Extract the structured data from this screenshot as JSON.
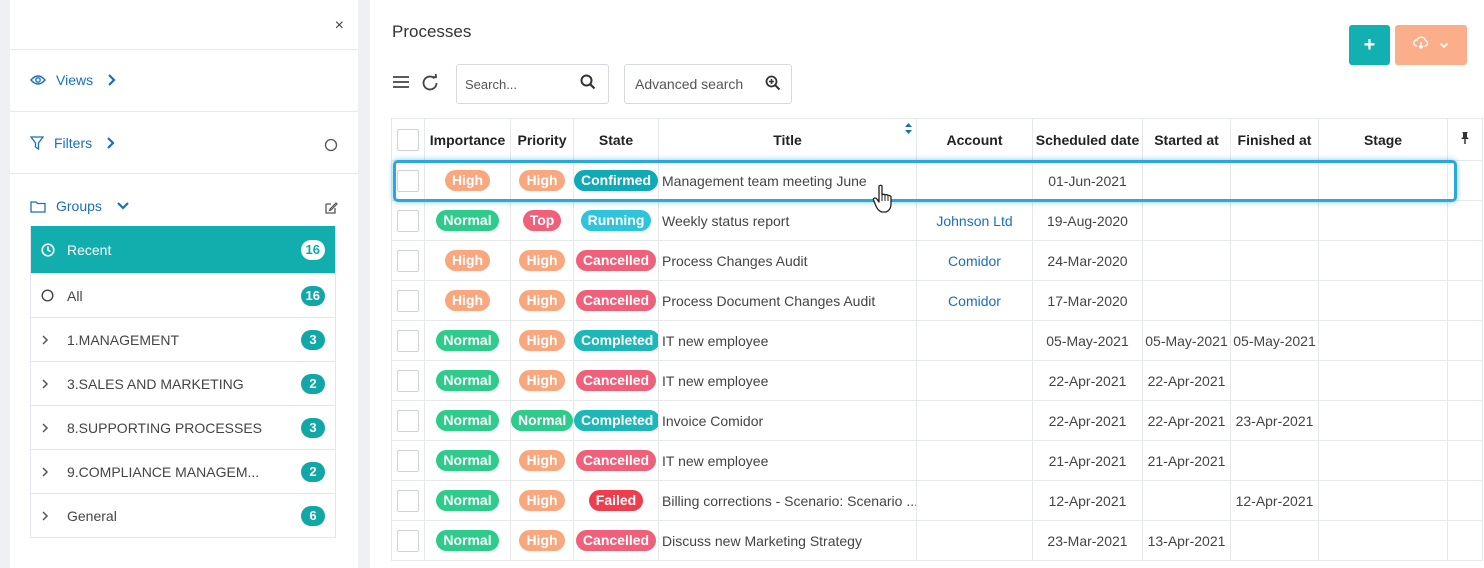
{
  "sidebar": {
    "close_label": "×",
    "views_label": "Views",
    "filters_label": "Filters",
    "groups_label": "Groups",
    "groups": [
      {
        "label": "Recent",
        "count": "16",
        "icon": "clock-icon",
        "active": true
      },
      {
        "label": "All",
        "count": "16",
        "icon": "circle-icon"
      },
      {
        "label": "1.MANAGEMENT",
        "count": "3",
        "icon": "chevron-right-icon"
      },
      {
        "label": "3.SALES AND MARKETING",
        "count": "2",
        "icon": "chevron-right-icon"
      },
      {
        "label": "8.SUPPORTING PROCESSES",
        "count": "3",
        "icon": "chevron-right-icon"
      },
      {
        "label": "9.COMPLIANCE MANAGEM...",
        "count": "2",
        "icon": "chevron-right-icon"
      },
      {
        "label": "General",
        "count": "6",
        "icon": "chevron-right-icon"
      }
    ]
  },
  "header": {
    "title": "Processes",
    "add_label": "+",
    "search_placeholder": "Search...",
    "advanced_search_label": "Advanced search"
  },
  "colors": {
    "teal": "#12aeae",
    "orange": "#fbae8a",
    "green": "#2ecb8c",
    "red": "#f0607a",
    "cyan": "#2ec4dc",
    "highlight": "#2aa6e0"
  },
  "table": {
    "columns": [
      "",
      "Importance",
      "Priority",
      "State",
      "Title",
      "Account",
      "Scheduled date",
      "Started at",
      "Finished at",
      "Stage",
      ""
    ],
    "rows": [
      {
        "importance": "High",
        "priority": "High",
        "state": "Confirmed",
        "title": "Management team meeting June",
        "account": "",
        "scheduled": "01-Jun-2021",
        "started": "",
        "finished": "",
        "stage": ""
      },
      {
        "importance": "Normal",
        "priority": "Top",
        "state": "Running",
        "title": "Weekly status report",
        "account": "Johnson Ltd",
        "scheduled": "19-Aug-2020",
        "started": "",
        "finished": "",
        "stage": ""
      },
      {
        "importance": "High",
        "priority": "High",
        "state": "Cancelled",
        "title": "Process Changes Audit",
        "account": "Comidor",
        "scheduled": "24-Mar-2020",
        "started": "",
        "finished": "",
        "stage": ""
      },
      {
        "importance": "High",
        "priority": "High",
        "state": "Cancelled",
        "title": "Process Document Changes Audit",
        "account": "Comidor",
        "scheduled": "17-Mar-2020",
        "started": "",
        "finished": "",
        "stage": ""
      },
      {
        "importance": "Normal",
        "priority": "High",
        "state": "Completed",
        "title": "IT new employee",
        "account": "",
        "scheduled": "05-May-2021",
        "started": "05-May-2021",
        "finished": "05-May-2021",
        "stage": ""
      },
      {
        "importance": "Normal",
        "priority": "High",
        "state": "Cancelled",
        "title": "IT new employee",
        "account": "",
        "scheduled": "22-Apr-2021",
        "started": "22-Apr-2021",
        "finished": "",
        "stage": ""
      },
      {
        "importance": "Normal",
        "priority": "Normal",
        "state": "Completed",
        "title": "Invoice Comidor",
        "account": "",
        "scheduled": "22-Apr-2021",
        "started": "22-Apr-2021",
        "finished": "23-Apr-2021",
        "stage": ""
      },
      {
        "importance": "Normal",
        "priority": "High",
        "state": "Cancelled",
        "title": "IT new employee",
        "account": "",
        "scheduled": "21-Apr-2021",
        "started": "21-Apr-2021",
        "finished": "",
        "stage": ""
      },
      {
        "importance": "Normal",
        "priority": "High",
        "state": "Failed",
        "title": "Billing corrections - Scenario: Scenario ...",
        "account": "",
        "scheduled": "12-Apr-2021",
        "started": "",
        "finished": "12-Apr-2021",
        "stage": ""
      },
      {
        "importance": "Normal",
        "priority": "High",
        "state": "Cancelled",
        "title": "Discuss new Marketing Strategy",
        "account": "",
        "scheduled": "23-Mar-2021",
        "started": "13-Apr-2021",
        "finished": "",
        "stage": ""
      }
    ],
    "pill_colors": {
      "High": "#f9a77f",
      "Normal": "#2ecb8c",
      "Top": "#f0607a",
      "Confirmed": "#12a9b6",
      "Running": "#2ec4dc",
      "Cancelled": "#f0607a",
      "Completed": "#1eb7b7",
      "Failed": "#ee3e4e"
    }
  }
}
